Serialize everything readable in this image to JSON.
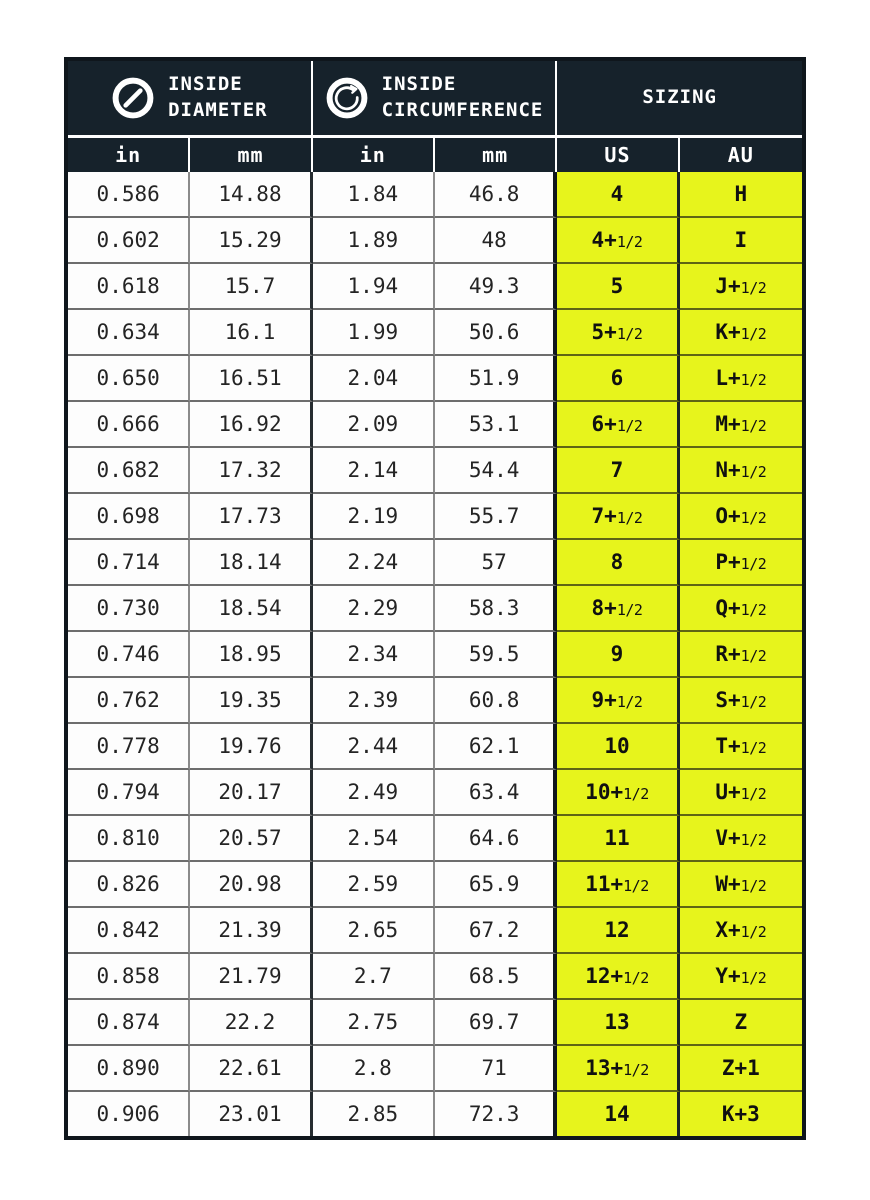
{
  "chart_data": {
    "type": "table",
    "column_groups": [
      {
        "title_line1": "INSIDE",
        "title_line2": "DIAMETER",
        "icon": "diameter-icon"
      },
      {
        "title_line1": "INSIDE",
        "title_line2": "CIRCUMFERENCE",
        "icon": "circumference-icon"
      },
      {
        "title_line1": "SIZING",
        "title_line2": "",
        "icon": ""
      }
    ],
    "columns": [
      "in",
      "mm",
      "in",
      "mm",
      "US",
      "AU"
    ],
    "rows": [
      [
        "0.586",
        "14.88",
        "1.84",
        "46.8",
        "4",
        "H"
      ],
      [
        "0.602",
        "15.29",
        "1.89",
        "48",
        "4+1/2",
        "I"
      ],
      [
        "0.618",
        "15.7",
        "1.94",
        "49.3",
        "5",
        "J+1/2"
      ],
      [
        "0.634",
        "16.1",
        "1.99",
        "50.6",
        "5+1/2",
        "K+1/2"
      ],
      [
        "0.650",
        "16.51",
        "2.04",
        "51.9",
        "6",
        "L+1/2"
      ],
      [
        "0.666",
        "16.92",
        "2.09",
        "53.1",
        "6+1/2",
        "M+1/2"
      ],
      [
        "0.682",
        "17.32",
        "2.14",
        "54.4",
        "7",
        "N+1/2"
      ],
      [
        "0.698",
        "17.73",
        "2.19",
        "55.7",
        "7+1/2",
        "O+1/2"
      ],
      [
        "0.714",
        "18.14",
        "2.24",
        "57",
        "8",
        "P+1/2"
      ],
      [
        "0.730",
        "18.54",
        "2.29",
        "58.3",
        "8+1/2",
        "Q+1/2"
      ],
      [
        "0.746",
        "18.95",
        "2.34",
        "59.5",
        "9",
        "R+1/2"
      ],
      [
        "0.762",
        "19.35",
        "2.39",
        "60.8",
        "9+1/2",
        "S+1/2"
      ],
      [
        "0.778",
        "19.76",
        "2.44",
        "62.1",
        "10",
        "T+1/2"
      ],
      [
        "0.794",
        "20.17",
        "2.49",
        "63.4",
        "10+1/2",
        "U+1/2"
      ],
      [
        "0.810",
        "20.57",
        "2.54",
        "64.6",
        "11",
        "V+1/2"
      ],
      [
        "0.826",
        "20.98",
        "2.59",
        "65.9",
        "11+1/2",
        "W+1/2"
      ],
      [
        "0.842",
        "21.39",
        "2.65",
        "67.2",
        "12",
        "X+1/2"
      ],
      [
        "0.858",
        "21.79",
        "2.7",
        "68.5",
        "12+1/2",
        "Y+1/2"
      ],
      [
        "0.874",
        "22.2",
        "2.75",
        "69.7",
        "13",
        "Z"
      ],
      [
        "0.890",
        "22.61",
        "2.8",
        "71",
        "13+1/2",
        "Z+1"
      ],
      [
        "0.906",
        "23.01",
        "2.85",
        "72.3",
        "14",
        "K+3"
      ]
    ],
    "highlight_columns": [
      "US",
      "AU"
    ],
    "colors": {
      "header_bg": "#16222B",
      "header_text": "#FFFFFF",
      "highlight_bg": "#E7F41C",
      "body_bg": "#FDFDFD",
      "body_text": "#242424"
    }
  }
}
